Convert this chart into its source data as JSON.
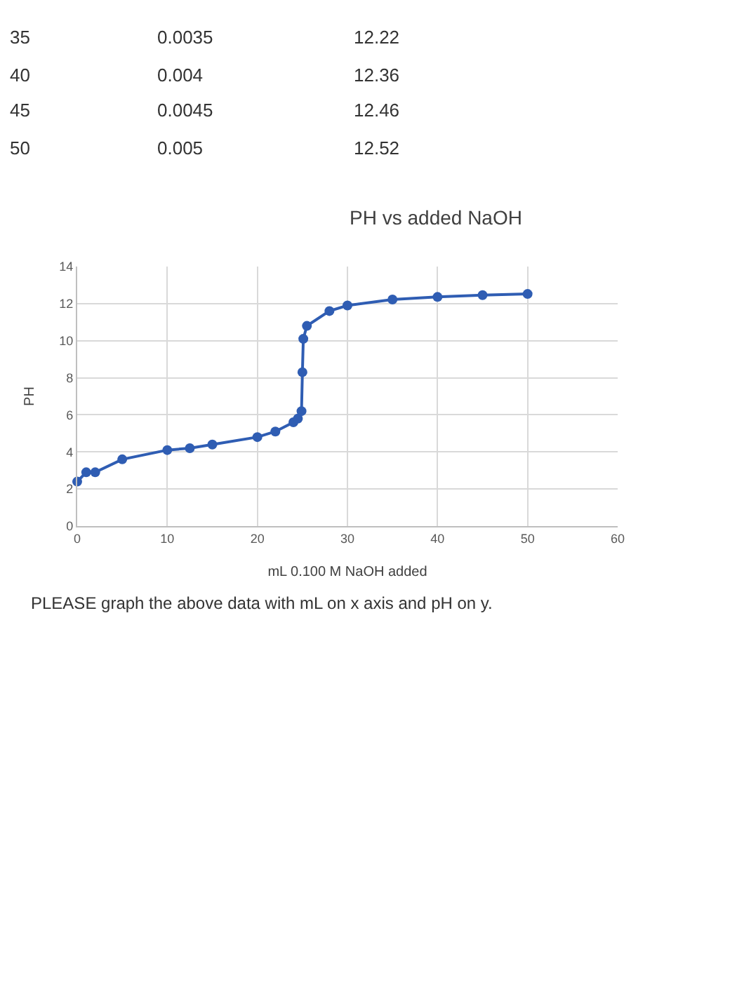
{
  "chart_data": {
    "type": "line",
    "title": "PH vs added NaOH",
    "xlabel": "mL 0.100 M NaOH added",
    "ylabel": "PH",
    "x": [
      0,
      1,
      2,
      5,
      10,
      12.5,
      15,
      20,
      22,
      24,
      24.5,
      24.9,
      25,
      25.1,
      25.5,
      28,
      30,
      35,
      40,
      45,
      50
    ],
    "series": [
      {
        "color": "#2f5db3",
        "values": [
          2.4,
          2.9,
          2.9,
          3.6,
          4.1,
          4.2,
          4.4,
          4.8,
          5.1,
          5.6,
          5.8,
          6.2,
          8.3,
          10.1,
          10.8,
          11.6,
          11.9,
          12.22,
          12.36,
          12.46,
          12.52
        ]
      }
    ],
    "xlim": [
      0,
      60
    ],
    "xticks": [
      0,
      10,
      20,
      30,
      40,
      50,
      60
    ],
    "ylim": [
      0,
      14
    ],
    "yticks": [
      0,
      2,
      4,
      6,
      8,
      10,
      12,
      14
    ],
    "grid": true,
    "marker": "circle",
    "line_style": "solid",
    "legend": false,
    "annotations": [
      "PLEASE graph the above data with mL on x axis and pH on y.",
      "35",
      "0.0035",
      "12.22",
      "40",
      "0.004",
      "12.36",
      "45",
      "0.0045",
      "12.46",
      "50",
      "0.005",
      "12.52"
    ]
  }
}
